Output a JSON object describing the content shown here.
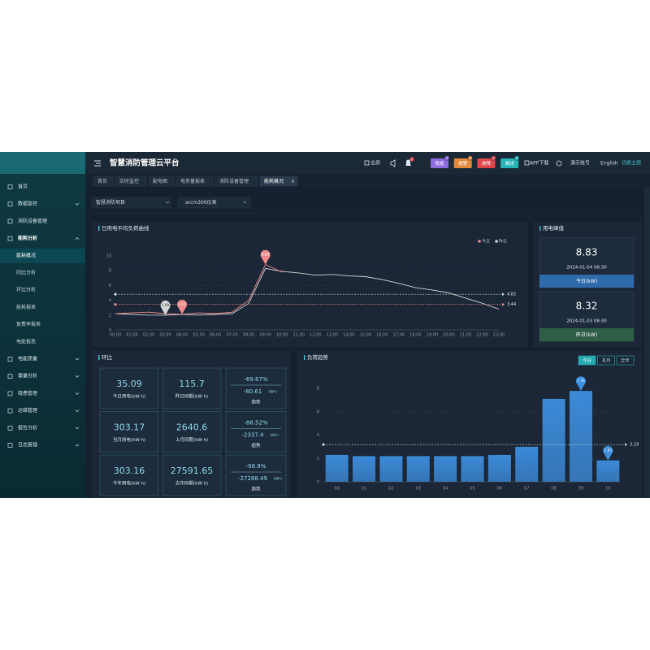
{
  "header": {
    "title": "智慧消防管理云平台",
    "fullscreen": "全屏",
    "bell_count": 0,
    "badges": [
      {
        "label": "隐患",
        "count": 1,
        "color": "#8e6be0"
      },
      {
        "label": "报警",
        "count": 0,
        "color": "#e58a3a"
      },
      {
        "label": "故障",
        "count": 0,
        "color": "#e0474c"
      },
      {
        "label": "离线",
        "count": 0,
        "color": "#27b3b8"
      }
    ],
    "app": "APP下载",
    "account": "演示账号",
    "language": "English",
    "theme": "切换主题"
  },
  "sidebar": {
    "menu": [
      {
        "label": "首页"
      },
      {
        "label": "数据监控",
        "expandable": true
      },
      {
        "label": "消防设备管理"
      },
      {
        "label": "能耗分析",
        "expandable": true,
        "expanded": true,
        "children": [
          {
            "label": "能耗概况",
            "active": true
          },
          {
            "label": "同比分析"
          },
          {
            "label": "环比分析"
          },
          {
            "label": "能耗报表"
          },
          {
            "label": "复费率报表"
          },
          {
            "label": "电能报表"
          }
        ]
      },
      {
        "label": "电能质量",
        "expandable": true
      },
      {
        "label": "需量分析",
        "expandable": true
      },
      {
        "label": "隐患管理",
        "expandable": true
      },
      {
        "label": "运维管理",
        "expandable": true
      },
      {
        "label": "报告分析",
        "expandable": true
      },
      {
        "label": "日志管理",
        "expandable": true
      }
    ]
  },
  "tabs": [
    {
      "label": "首页"
    },
    {
      "label": "实时监控"
    },
    {
      "label": "配电图"
    },
    {
      "label": "电参量报表"
    },
    {
      "label": "消防设备管理"
    },
    {
      "label": "能耗概况",
      "active": true
    }
  ],
  "filters": [
    "智慧消防项目",
    "arcm300仪表"
  ],
  "chart_data": [
    {
      "type": "line",
      "title": "日用电平均负荷曲线",
      "x": [
        "00:00",
        "01:00",
        "02:00",
        "03:00",
        "04:00",
        "05:00",
        "06:00",
        "07:00",
        "08:00",
        "09:00",
        "10:00",
        "11:00",
        "12:00",
        "13:00",
        "14:00",
        "15:00",
        "16:00",
        "17:00",
        "18:00",
        "19:00",
        "20:00",
        "21:00",
        "22:00",
        "23:00"
      ],
      "series": [
        {
          "name": "今日",
          "color": "#f08a8a",
          "avg": 3.44,
          "marks": [
            "max",
            "min"
          ],
          "values": [
            2.2,
            2.3,
            2.4,
            2.2,
            2.11,
            2.3,
            2.2,
            2.4,
            4.0,
            8.83,
            7.8,
            null,
            null,
            null,
            null,
            null,
            null,
            null,
            null,
            null,
            null,
            null,
            null,
            null
          ]
        },
        {
          "name": "昨日",
          "color": "#d6d6d6",
          "avg": 4.82,
          "marks": [
            "min"
          ],
          "values": [
            2.2,
            2.1,
            2.0,
            1.99,
            2.1,
            2.0,
            2.1,
            2.2,
            3.6,
            8.32,
            7.9,
            7.7,
            7.4,
            7.5,
            7.3,
            7.2,
            6.8,
            6.3,
            5.7,
            5.4,
            5.0,
            4.3,
            3.6,
            2.8
          ]
        }
      ],
      "ylim": [
        0,
        10
      ],
      "yticks": [
        0,
        2,
        4,
        6,
        8,
        10
      ],
      "grid": true
    },
    {
      "type": "bar",
      "title": "负荷趋势",
      "periods": [
        "今日",
        "本月",
        "全年"
      ],
      "categories": [
        "00",
        "01",
        "02",
        "03",
        "04",
        "05",
        "06",
        "07",
        "08",
        "09",
        "10"
      ],
      "values": [
        2.3,
        2.2,
        2.2,
        2.2,
        2.2,
        2.2,
        2.3,
        3.0,
        7.1,
        7.78,
        1.83
      ],
      "color": "#3d8fe0",
      "avg": 3.19,
      "marks": [
        "max",
        "min"
      ],
      "ylim": [
        0,
        8
      ],
      "yticks": [
        0,
        2,
        4,
        6,
        8
      ],
      "grid": true
    }
  ],
  "peak": {
    "title": "用电峰值",
    "cards": [
      {
        "value": "8.83",
        "time": "2024-01-04 08:30",
        "label": "今日(kW)",
        "color": "#2e6bab"
      },
      {
        "value": "8.32",
        "time": "2024-01-03 08:30",
        "label": "昨日(kW)",
        "color": "#2f5e46"
      }
    ]
  },
  "comparison": {
    "title": "环比",
    "rows": [
      {
        "current": "35.09",
        "current_label": "今日用电(kW·h)",
        "previous": "115.7",
        "previous_label": "昨日同期(kW·h)",
        "rate": "-69.67%",
        "delta": "-80.61",
        "delta_unit": "kW·h",
        "trend": "趋势"
      },
      {
        "current": "303.17",
        "current_label": "当月用电(kW·h)",
        "previous": "2640.6",
        "previous_label": "上月同期(kW·h)",
        "rate": "-88.52%",
        "delta": "-2337.4",
        "delta_unit": "kW·h",
        "trend": "趋势"
      },
      {
        "current": "303.16",
        "current_label": "今年用电(kW·h)",
        "previous": "27591.65",
        "previous_label": "去年同期(kW·h)",
        "rate": "-98.9%",
        "delta": "-27288.49",
        "delta_unit": "kW·h",
        "trend": "趋势"
      }
    ]
  }
}
